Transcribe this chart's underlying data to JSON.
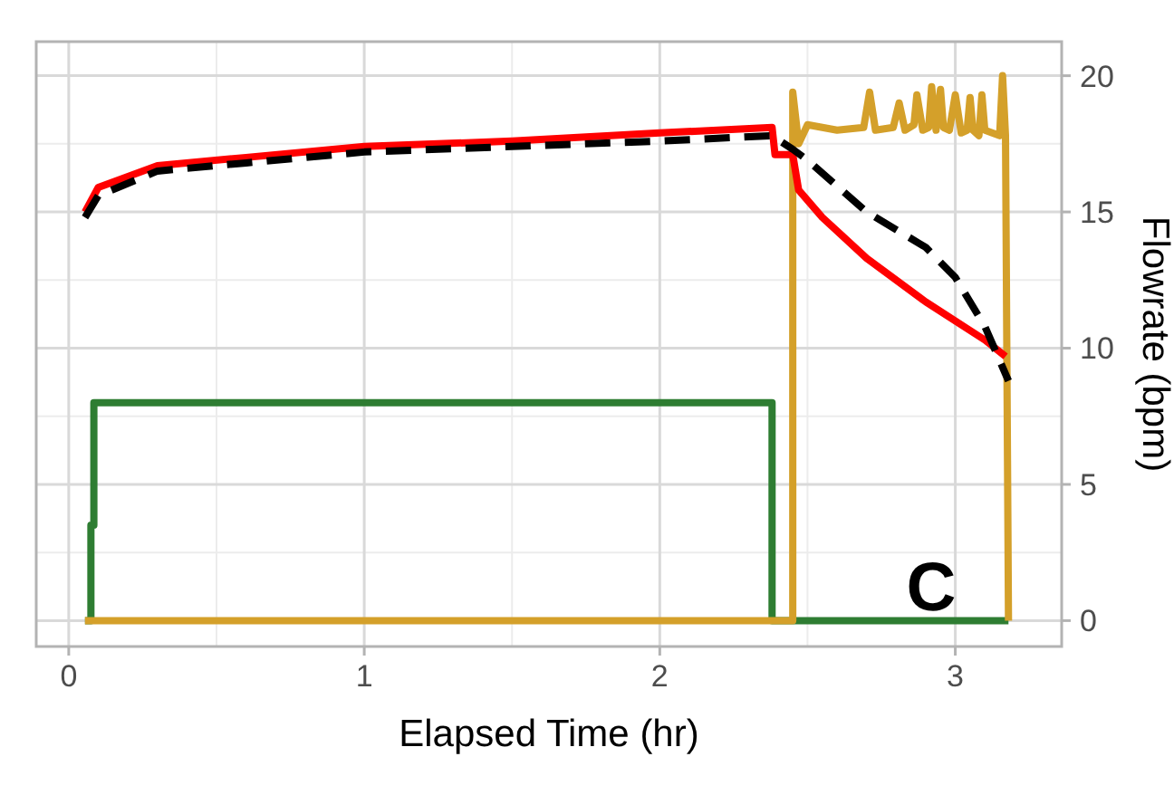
{
  "chart_data": {
    "type": "line",
    "xlabel": "Elapsed Time (hr)",
    "ylabel": "Flowrate (bpm)",
    "xlim": [
      -0.11,
      3.36
    ],
    "xticks": [
      0,
      1,
      2,
      3
    ],
    "ylim": [
      -0.95,
      21.25
    ],
    "yticks": [
      0,
      5,
      10,
      15,
      20
    ],
    "grid": true,
    "annotations": [
      "C"
    ],
    "series": [
      {
        "color": "#2e7d32",
        "x": [
          0.055,
          0.075,
          0.075,
          0.085,
          0.085,
          2.38,
          2.38,
          3.18
        ],
        "values": [
          0,
          0,
          3.5,
          3.5,
          8.0,
          8.0,
          0,
          0
        ],
        "line_style": "solid"
      },
      {
        "color": "#d4a02a",
        "x": [
          0.055,
          2.45,
          2.45,
          2.47,
          2.5,
          2.6,
          2.69,
          2.71,
          2.73,
          2.79,
          2.81,
          2.83,
          2.86,
          2.87,
          2.89,
          2.91,
          2.92,
          2.935,
          2.95,
          2.96,
          2.98,
          3.0,
          3.02,
          3.04,
          3.05,
          3.06,
          3.08,
          3.09,
          3.1,
          3.15,
          3.16,
          3.17,
          3.18
        ],
        "values": [
          0,
          0,
          19.4,
          17.5,
          18.2,
          18.0,
          18.1,
          19.4,
          18.0,
          18.1,
          19.0,
          18.0,
          18.2,
          19.3,
          18.0,
          18.1,
          19.6,
          18.0,
          19.5,
          18.1,
          18.0,
          19.3,
          17.9,
          18.0,
          19.2,
          18.0,
          17.8,
          19.3,
          18.0,
          17.8,
          20.0,
          17.8,
          0
        ],
        "line_style": "solid"
      },
      {
        "color": "#ff0000",
        "x": [
          0.055,
          0.1,
          0.3,
          0.6,
          1.0,
          1.5,
          2.0,
          2.38,
          2.39,
          2.45,
          2.47,
          2.55,
          2.7,
          2.9,
          3.1,
          3.17
        ],
        "values": [
          15.0,
          15.9,
          16.7,
          17.0,
          17.4,
          17.6,
          17.9,
          18.1,
          17.1,
          17.1,
          15.8,
          14.8,
          13.3,
          11.7,
          10.3,
          9.7
        ],
        "line_style": "solid"
      },
      {
        "color": "#000000",
        "x": [
          0.055,
          0.1,
          0.3,
          0.6,
          1.0,
          1.5,
          2.0,
          2.38,
          2.45,
          2.5,
          2.7,
          2.9,
          3.0,
          3.1,
          3.18
        ],
        "values": [
          14.8,
          15.6,
          16.5,
          16.8,
          17.2,
          17.4,
          17.6,
          17.8,
          17.3,
          16.9,
          15.0,
          13.7,
          12.6,
          10.8,
          8.8
        ],
        "line_style": "dashed"
      }
    ]
  }
}
